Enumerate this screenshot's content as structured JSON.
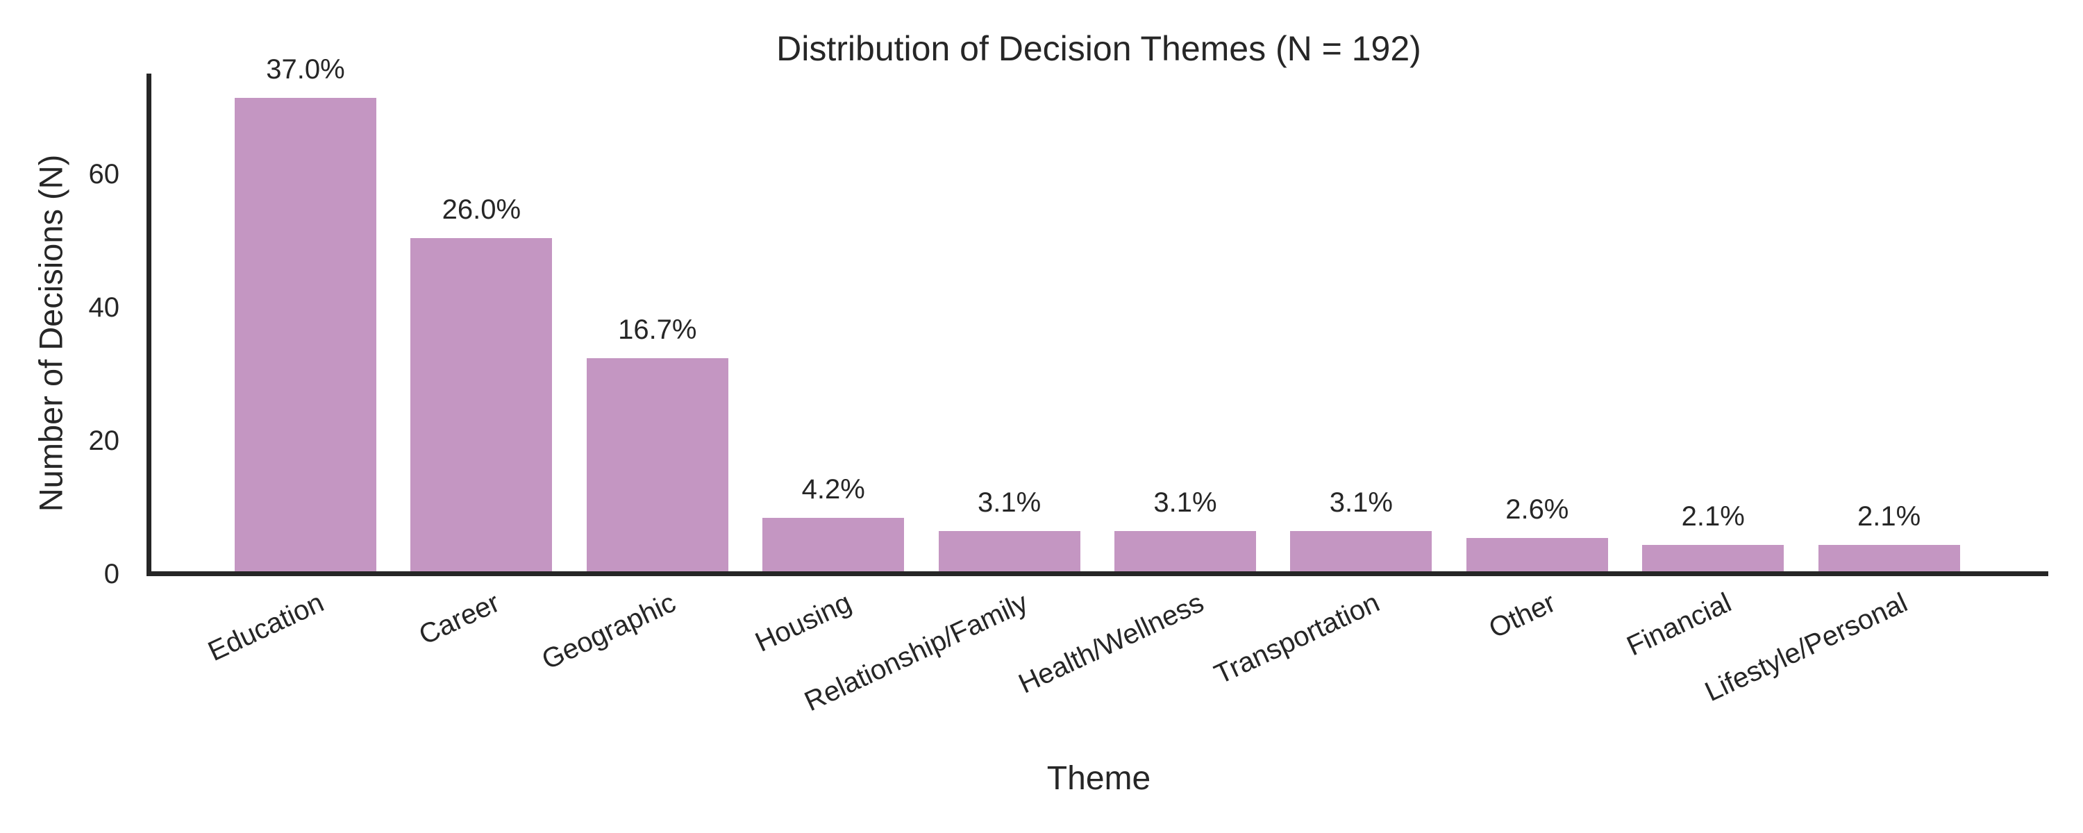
{
  "chart_data": {
    "type": "bar",
    "title": "Distribution of Decision Themes (N = 192)",
    "xlabel": "Theme",
    "ylabel": "Number of Decisions (N)",
    "n_total": 192,
    "categories": [
      "Education",
      "Career",
      "Geographic",
      "Housing",
      "Relationship/Family",
      "Health/Wellness",
      "Transportation",
      "Other",
      "Financial",
      "Lifestyle/Personal"
    ],
    "values": [
      71,
      50,
      32,
      8,
      6,
      6,
      6,
      5,
      4,
      4
    ],
    "bar_labels": [
      "37.0%",
      "26.0%",
      "16.7%",
      "4.2%",
      "3.1%",
      "3.1%",
      "3.1%",
      "2.6%",
      "2.1%",
      "2.1%"
    ],
    "yticks": [
      0,
      20,
      40,
      60
    ],
    "ylim": [
      0,
      75
    ],
    "grid": false,
    "legend": null,
    "colors": {
      "bar": "#c496c2",
      "text": "#262626",
      "spine": "#262626",
      "background": "#ffffff"
    }
  }
}
